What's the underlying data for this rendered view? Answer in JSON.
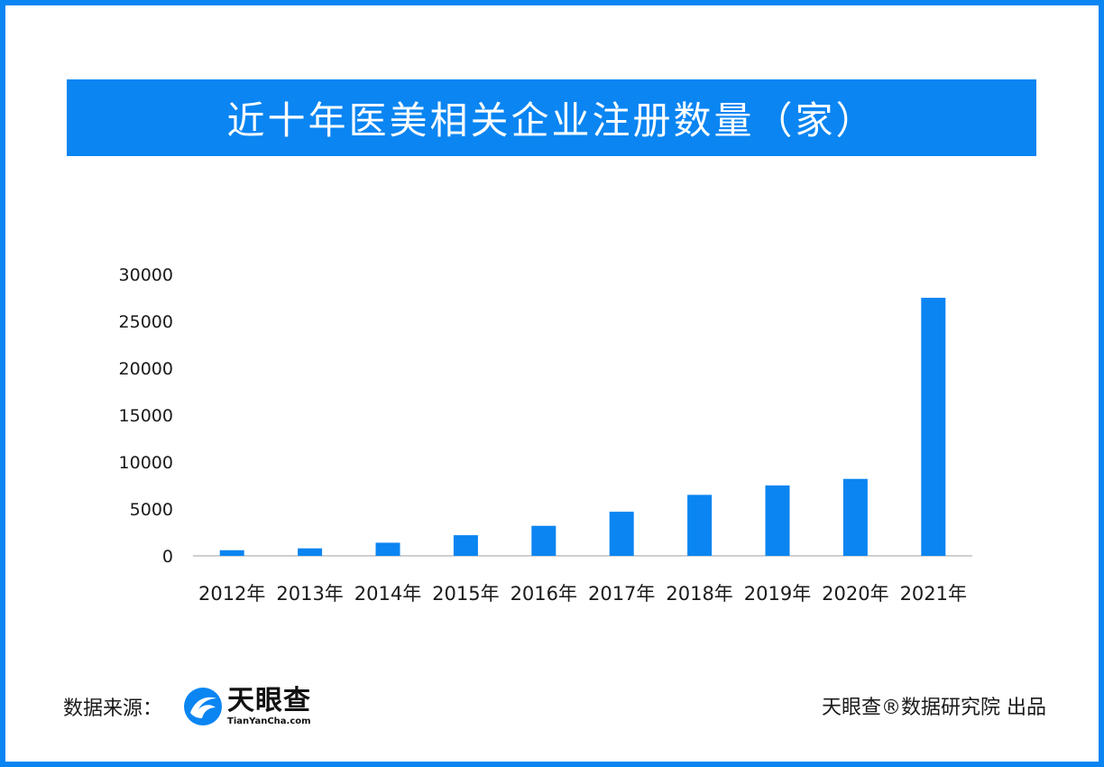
{
  "title": "近十年医美相关企业注册数量（家）",
  "footer": {
    "source_label": "数据来源：",
    "logo_cn": "天眼查",
    "logo_en": "TianYanCha.com",
    "credit": "天眼查®数据研究院 出品"
  },
  "colors": {
    "accent": "#0a85f2",
    "bar": "#0a85f2",
    "axis": "#bfbfbf",
    "text": "#1a1a1a"
  },
  "chart_data": {
    "type": "bar",
    "categories": [
      "2012年",
      "2013年",
      "2014年",
      "2015年",
      "2016年",
      "2017年",
      "2018年",
      "2019年",
      "2020年",
      "2021年"
    ],
    "values": [
      600,
      800,
      1400,
      2200,
      3200,
      4700,
      6500,
      7500,
      8200,
      27500
    ],
    "yticks": [
      0,
      5000,
      10000,
      15000,
      20000,
      25000,
      30000
    ],
    "ylim": [
      0,
      30000
    ],
    "grid": false,
    "legend": "none"
  }
}
